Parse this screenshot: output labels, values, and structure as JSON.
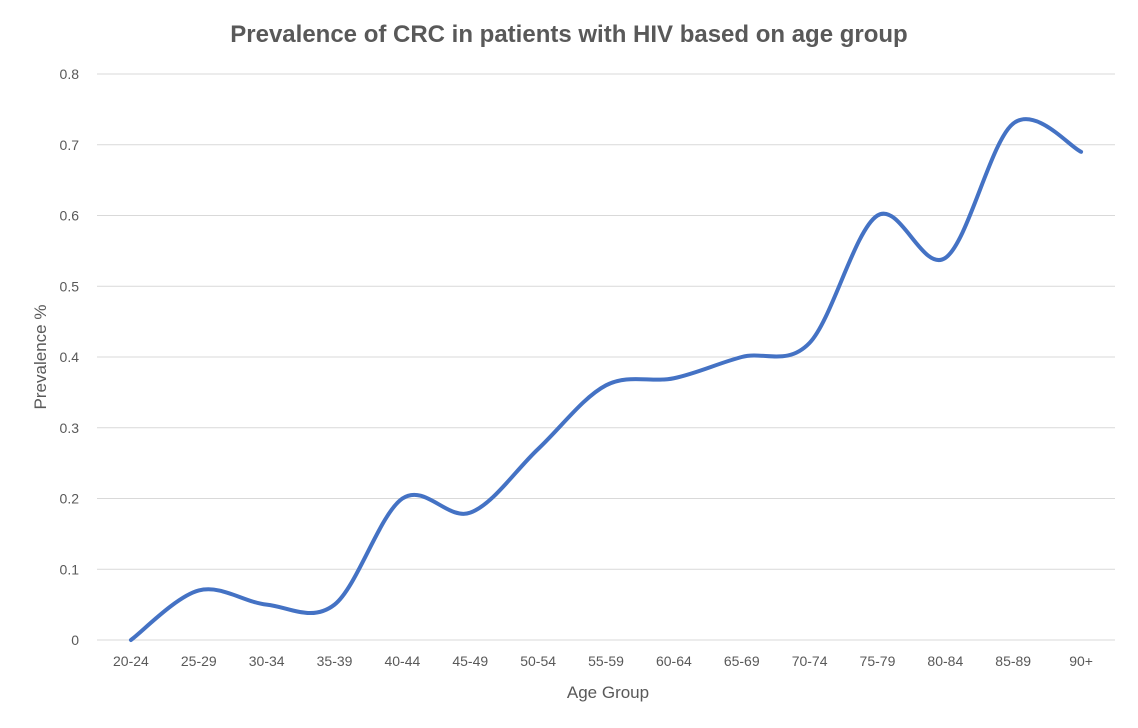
{
  "chart_data": {
    "type": "line",
    "title": "Prevalence of CRC in patients with HIV based on age group",
    "xlabel": "Age Group",
    "ylabel": "Prevalence %",
    "categories": [
      "20-24",
      "25-29",
      "30-34",
      "35-39",
      "40-44",
      "45-49",
      "50-54",
      "55-59",
      "60-64",
      "65-69",
      "70-74",
      "75-79",
      "80-84",
      "85-89",
      "90+"
    ],
    "series": [
      {
        "values": [
          0.0,
          0.07,
          0.05,
          0.05,
          0.2,
          0.18,
          0.27,
          0.36,
          0.37,
          0.4,
          0.42,
          0.6,
          0.54,
          0.73,
          0.69
        ],
        "color": "#4472c4",
        "smooth": true
      }
    ],
    "ylim": [
      0,
      0.8
    ],
    "yticks": [
      0,
      0.1,
      0.2,
      0.3,
      0.4,
      0.5,
      0.6,
      0.7,
      0.8
    ],
    "ytick_labels": [
      "0",
      "0.1",
      "0.2",
      "0.3",
      "0.4",
      "0.5",
      "0.6",
      "0.7",
      "0.8"
    ],
    "grid": true,
    "legend": "none"
  }
}
